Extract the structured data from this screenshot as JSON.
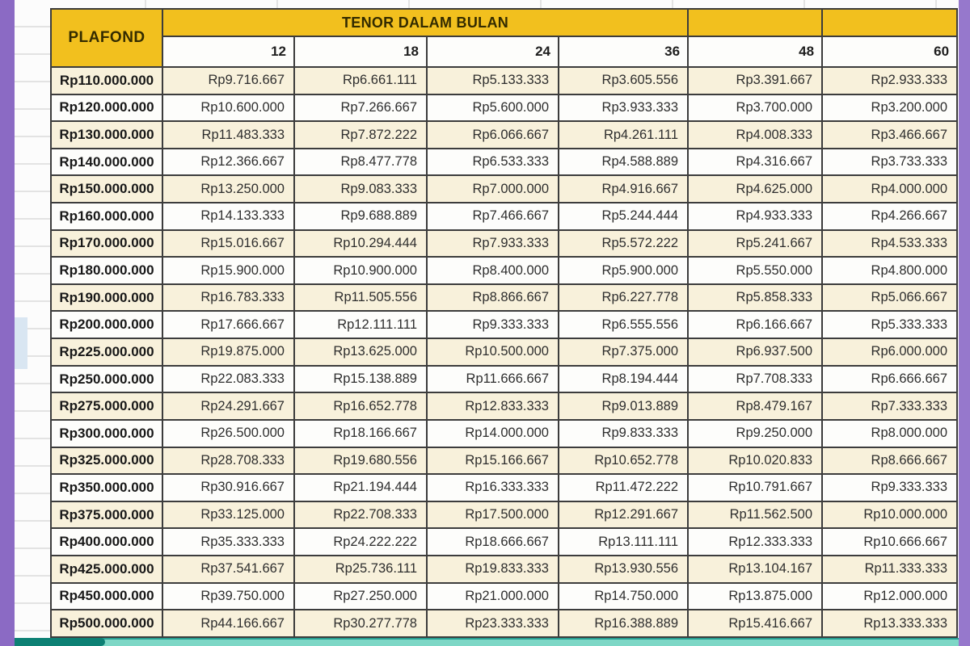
{
  "window": {
    "left_strip_color": "#8B6AC4",
    "right_strip_color": "#9678CC",
    "progress_played_color": "#0D8074",
    "progress_track_color": "#7ED7C6",
    "margin_selection_color": "#D9E6F2"
  },
  "theme": {
    "header_yellow": "#F2C01E",
    "row_cream": "#F8F1DB",
    "row_white": "#FDFDFB",
    "border_dark": "#3C3C3C",
    "text_dark": "#2E2E2E"
  },
  "table": {
    "plafond_header": "PLAFOND",
    "tenor_header": "TENOR DALAM BULAN",
    "tenor_columns": [
      "12",
      "18",
      "24",
      "36",
      "48",
      "60"
    ]
  },
  "chart_data": {
    "type": "table",
    "columns": [
      "PLAFOND",
      "12",
      "18",
      "24",
      "36",
      "48",
      "60"
    ],
    "column_group_label": "TENOR DALAM BULAN",
    "rows": [
      [
        "Rp110.000.000",
        "Rp9.716.667",
        "Rp6.661.111",
        "Rp5.133.333",
        "Rp3.605.556",
        "Rp3.391.667",
        "Rp2.933.333"
      ],
      [
        "Rp120.000.000",
        "Rp10.600.000",
        "Rp7.266.667",
        "Rp5.600.000",
        "Rp3.933.333",
        "Rp3.700.000",
        "Rp3.200.000"
      ],
      [
        "Rp130.000.000",
        "Rp11.483.333",
        "Rp7.872.222",
        "Rp6.066.667",
        "Rp4.261.111",
        "Rp4.008.333",
        "Rp3.466.667"
      ],
      [
        "Rp140.000.000",
        "Rp12.366.667",
        "Rp8.477.778",
        "Rp6.533.333",
        "Rp4.588.889",
        "Rp4.316.667",
        "Rp3.733.333"
      ],
      [
        "Rp150.000.000",
        "Rp13.250.000",
        "Rp9.083.333",
        "Rp7.000.000",
        "Rp4.916.667",
        "Rp4.625.000",
        "Rp4.000.000"
      ],
      [
        "Rp160.000.000",
        "Rp14.133.333",
        "Rp9.688.889",
        "Rp7.466.667",
        "Rp5.244.444",
        "Rp4.933.333",
        "Rp4.266.667"
      ],
      [
        "Rp170.000.000",
        "Rp15.016.667",
        "Rp10.294.444",
        "Rp7.933.333",
        "Rp5.572.222",
        "Rp5.241.667",
        "Rp4.533.333"
      ],
      [
        "Rp180.000.000",
        "Rp15.900.000",
        "Rp10.900.000",
        "Rp8.400.000",
        "Rp5.900.000",
        "Rp5.550.000",
        "Rp4.800.000"
      ],
      [
        "Rp190.000.000",
        "Rp16.783.333",
        "Rp11.505.556",
        "Rp8.866.667",
        "Rp6.227.778",
        "Rp5.858.333",
        "Rp5.066.667"
      ],
      [
        "Rp200.000.000",
        "Rp17.666.667",
        "Rp12.111.111",
        "Rp9.333.333",
        "Rp6.555.556",
        "Rp6.166.667",
        "Rp5.333.333"
      ],
      [
        "Rp225.000.000",
        "Rp19.875.000",
        "Rp13.625.000",
        "Rp10.500.000",
        "Rp7.375.000",
        "Rp6.937.500",
        "Rp6.000.000"
      ],
      [
        "Rp250.000.000",
        "Rp22.083.333",
        "Rp15.138.889",
        "Rp11.666.667",
        "Rp8.194.444",
        "Rp7.708.333",
        "Rp6.666.667"
      ],
      [
        "Rp275.000.000",
        "Rp24.291.667",
        "Rp16.652.778",
        "Rp12.833.333",
        "Rp9.013.889",
        "Rp8.479.167",
        "Rp7.333.333"
      ],
      [
        "Rp300.000.000",
        "Rp26.500.000",
        "Rp18.166.667",
        "Rp14.000.000",
        "Rp9.833.333",
        "Rp9.250.000",
        "Rp8.000.000"
      ],
      [
        "Rp325.000.000",
        "Rp28.708.333",
        "Rp19.680.556",
        "Rp15.166.667",
        "Rp10.652.778",
        "Rp10.020.833",
        "Rp8.666.667"
      ],
      [
        "Rp350.000.000",
        "Rp30.916.667",
        "Rp21.194.444",
        "Rp16.333.333",
        "Rp11.472.222",
        "Rp10.791.667",
        "Rp9.333.333"
      ],
      [
        "Rp375.000.000",
        "Rp33.125.000",
        "Rp22.708.333",
        "Rp17.500.000",
        "Rp12.291.667",
        "Rp11.562.500",
        "Rp10.000.000"
      ],
      [
        "Rp400.000.000",
        "Rp35.333.333",
        "Rp24.222.222",
        "Rp18.666.667",
        "Rp13.111.111",
        "Rp12.333.333",
        "Rp10.666.667"
      ],
      [
        "Rp425.000.000",
        "Rp37.541.667",
        "Rp25.736.111",
        "Rp19.833.333",
        "Rp13.930.556",
        "Rp13.104.167",
        "Rp11.333.333"
      ],
      [
        "Rp450.000.000",
        "Rp39.750.000",
        "Rp27.250.000",
        "Rp21.000.000",
        "Rp14.750.000",
        "Rp13.875.000",
        "Rp12.000.000"
      ],
      [
        "Rp500.000.000",
        "Rp44.166.667",
        "Rp30.277.778",
        "Rp23.333.333",
        "Rp16.388.889",
        "Rp15.416.667",
        "Rp13.333.333"
      ]
    ]
  }
}
